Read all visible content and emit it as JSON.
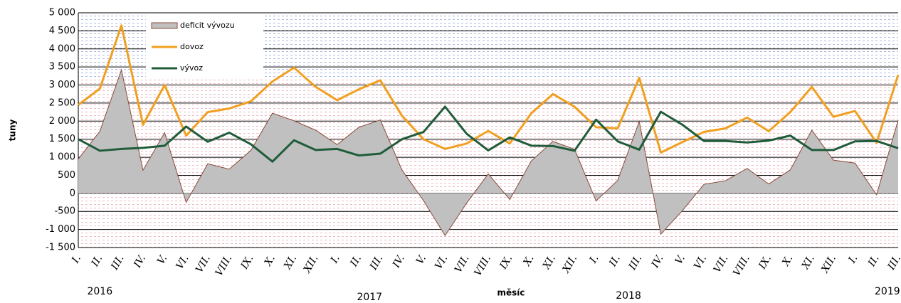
{
  "chart_data": {
    "type": "line",
    "x_label": "měsíc",
    "y_label": "tuny",
    "categories": [
      "I.",
      "II.",
      "III.",
      "IV.",
      "V.",
      "VI.",
      "VII.",
      "VIII.",
      "IX.",
      "X.",
      "XI.",
      "XII.",
      "I.",
      "II.",
      "III.",
      "IV.",
      "V.",
      "VI.",
      "VII.",
      "VIII.",
      "IX.",
      "X.",
      "XI.",
      "XII.",
      "I.",
      "II.",
      "III.",
      "IV.",
      "V.",
      "VI.",
      "VII.",
      "VIII.",
      "IX.",
      "X.",
      "XI.",
      "XII.",
      "I.",
      "II.",
      "III."
    ],
    "year_labels": [
      "2016",
      "2017",
      "2018",
      "2019"
    ],
    "series": [
      {
        "name": "deficit vývozu",
        "kind": "area",
        "color": "#c0c0c0",
        "edge_color": "#8b4a3a",
        "values": [
          950,
          1720,
          3420,
          640,
          1680,
          -250,
          820,
          670,
          1190,
          2220,
          2010,
          1750,
          1350,
          1830,
          2030,
          650,
          -200,
          -1170,
          -270,
          540,
          -170,
          900,
          1440,
          1220,
          -210,
          360,
          1990,
          -1130,
          -480,
          250,
          350,
          690,
          260,
          650,
          1750,
          920,
          840,
          -40,
          2030
        ]
      },
      {
        "name": "dovoz",
        "kind": "line",
        "color": "#f0a020",
        "values": [
          2450,
          2900,
          4650,
          1900,
          3000,
          1600,
          2250,
          2350,
          2550,
          3100,
          3480,
          2950,
          2580,
          2880,
          3130,
          2150,
          1500,
          1230,
          1380,
          1730,
          1380,
          2220,
          2750,
          2400,
          1830,
          1800,
          3200,
          1130,
          1420,
          1700,
          1800,
          2100,
          1720,
          2250,
          2950,
          2120,
          2280,
          1400,
          3280
        ]
      },
      {
        "name": "vývoz",
        "kind": "line",
        "color": "#1f5c3a",
        "values": [
          1500,
          1180,
          1230,
          1260,
          1320,
          1850,
          1430,
          1680,
          1360,
          880,
          1470,
          1200,
          1230,
          1050,
          1100,
          1500,
          1700,
          2400,
          1650,
          1190,
          1550,
          1320,
          1310,
          1180,
          2040,
          1440,
          1210,
          2260,
          1900,
          1450,
          1450,
          1410,
          1460,
          1600,
          1200,
          1200,
          1440,
          1450,
          1250
        ]
      }
    ],
    "ylim": [
      -1500,
      5000
    ],
    "yticks": [
      {
        "value": -1500,
        "label": "-1 500"
      },
      {
        "value": -1000,
        "label": "-1 000"
      },
      -500,
      0,
      500,
      {
        "value": 1000,
        "label": "1 000"
      },
      {
        "value": 1500,
        "label": "1 500"
      },
      {
        "value": 2000,
        "label": "2 000"
      },
      {
        "value": 2500,
        "label": "2 500"
      },
      {
        "value": 3000,
        "label": "3 000"
      },
      {
        "value": 3500,
        "label": "3 500"
      },
      {
        "value": 4000,
        "label": "4 000"
      },
      {
        "value": 4500,
        "label": "4 500"
      },
      {
        "value": 5000,
        "label": "5 000"
      }
    ],
    "grid": true,
    "legend": "upper left"
  }
}
